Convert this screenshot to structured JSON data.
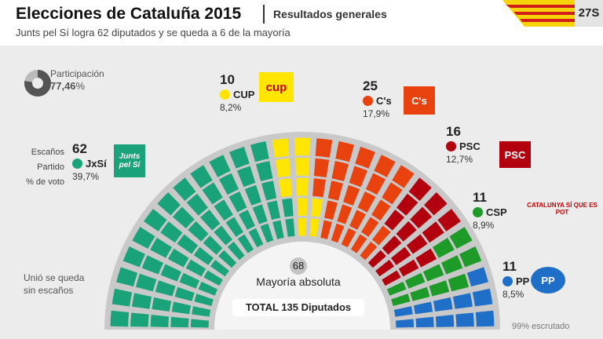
{
  "header": {
    "title": "Elecciones de Cataluña 2015",
    "subtitle": "Resultados generales",
    "lead": "Junts pel Sí logra 62 diputados y se queda a 6 de la mayoría",
    "badge": "27S"
  },
  "participation": {
    "label": "Participación",
    "value": "77,46",
    "unit": "%",
    "fraction": 0.7746
  },
  "legend": {
    "seats_label": "Escaños",
    "party_label": "Partido",
    "vote_label": "% de voto"
  },
  "parties": [
    {
      "id": "jxsi",
      "name": "JxSí",
      "seats": "62",
      "pct": "39,7%",
      "color": "#1aa37a",
      "logo": "Junts pel Sí"
    },
    {
      "id": "cup",
      "name": "CUP",
      "seats": "10",
      "pct": "8,2%",
      "color": "#ffe500",
      "logo": "cup"
    },
    {
      "id": "cs",
      "name": "C's",
      "seats": "25",
      "pct": "17,9%",
      "color": "#e8420f",
      "logo": "C's"
    },
    {
      "id": "psc",
      "name": "PSC",
      "seats": "16",
      "pct": "12,7%",
      "color": "#b3000e",
      "logo": "PSC"
    },
    {
      "id": "csp",
      "name": "CSP",
      "seats": "11",
      "pct": "8,9%",
      "color": "#1e9a29",
      "logo": "CATALUNYA SÍ QUE ES POT"
    },
    {
      "id": "pp",
      "name": "PP",
      "seats": "11",
      "pct": "8,5%",
      "color": "#1f6fc9",
      "logo": "PP"
    }
  ],
  "majority": {
    "number": "68",
    "label": "Mayoría absoluta"
  },
  "total": "TOTAL 135 Diputados",
  "note": "Unió se queda sin escaños",
  "scrutiny": "99% escrutado"
}
